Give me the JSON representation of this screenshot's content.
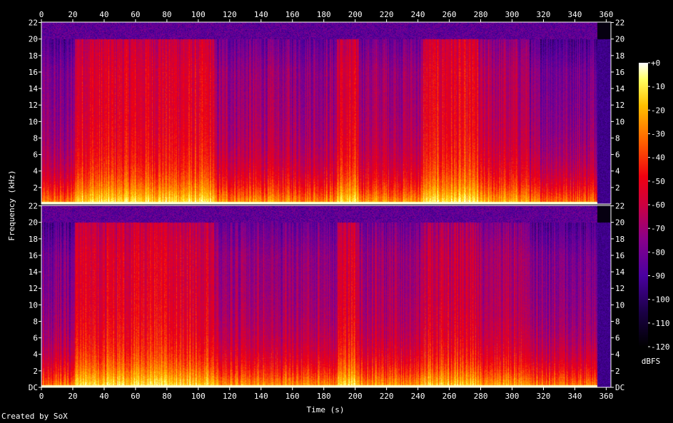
{
  "chart_data": {
    "type": "heatmap",
    "subtype": "spectrogram",
    "channels": 2,
    "xlabel": "Time (s)",
    "ylabel": "Frequency (kHz)",
    "x_ticks": [
      0,
      20,
      40,
      60,
      80,
      100,
      120,
      140,
      160,
      180,
      200,
      220,
      240,
      260,
      280,
      300,
      320,
      340,
      360
    ],
    "xlim": [
      0,
      363
    ],
    "y_ticks_top": [
      "2",
      "4",
      "6",
      "8",
      "10",
      "12",
      "14",
      "16",
      "18",
      "20",
      "22"
    ],
    "y_ticks_bottom": [
      "DC",
      "2",
      "4",
      "6",
      "8",
      "10",
      "12",
      "14",
      "16",
      "18",
      "20",
      "22"
    ],
    "ylim_khz": [
      0,
      22.05
    ],
    "colorbar": {
      "label": "dBFS",
      "ticks": [
        "+0",
        "-10",
        "-20",
        "-30",
        "-40",
        "-50",
        "-60",
        "-70",
        "-80",
        "-90",
        "-100",
        "-110",
        "-120"
      ],
      "range": [
        -120,
        0
      ]
    },
    "colors": {
      "background": "#000000",
      "axis": "#ffffff"
    },
    "segments": [
      {
        "start": 0,
        "end": 21,
        "level": 0.65
      },
      {
        "start": 21,
        "end": 110,
        "level": 0.9
      },
      {
        "start": 110,
        "end": 188,
        "level": 0.72
      },
      {
        "start": 188,
        "end": 202,
        "level": 0.88
      },
      {
        "start": 202,
        "end": 243,
        "level": 0.74
      },
      {
        "start": 243,
        "end": 278,
        "level": 0.92
      },
      {
        "start": 278,
        "end": 311,
        "level": 0.78
      },
      {
        "start": 311,
        "end": 354,
        "level": 0.66
      },
      {
        "start": 354,
        "end": 363,
        "level": 0.05
      }
    ]
  },
  "footer": "Created by SoX"
}
